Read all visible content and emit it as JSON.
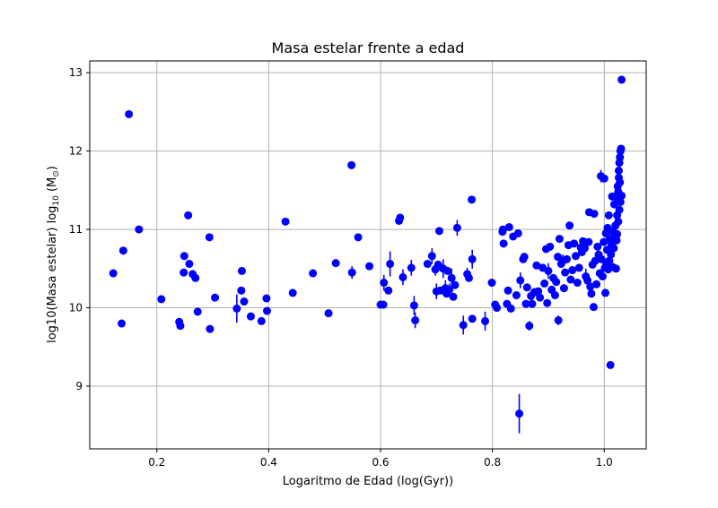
{
  "chart_data": {
    "type": "scatter",
    "title": "Masa estelar frente a edad",
    "xlabel": "Logaritmo de Edad (log(Gyr))",
    "ylabel_main": "log10(Masa estelar) log",
    "ylabel_sub": "10",
    "ylabel_unit_open": " (M",
    "ylabel_unit_sub": "⊙",
    "ylabel_unit_close": ")",
    "xlim": [
      0.08,
      1.075
    ],
    "ylim": [
      8.2,
      13.15
    ],
    "xticks": [
      0.2,
      0.4,
      0.6,
      0.8,
      1.0
    ],
    "xtick_labels": [
      "0.2",
      "0.4",
      "0.6",
      "0.8",
      "1.0"
    ],
    "yticks": [
      9,
      10,
      11,
      12,
      13
    ],
    "ytick_labels": [
      "9",
      "10",
      "11",
      "12",
      "13"
    ],
    "grid": true,
    "color": "#0000ff",
    "series": [
      {
        "points": [
          {
            "x": 0.122,
            "y": 10.44
          },
          {
            "x": 0.137,
            "y": 9.8
          },
          {
            "x": 0.14,
            "y": 10.73
          },
          {
            "x": 0.15,
            "y": 12.47
          },
          {
            "x": 0.168,
            "y": 11.0
          },
          {
            "x": 0.208,
            "y": 10.11
          },
          {
            "x": 0.24,
            "y": 9.82
          },
          {
            "x": 0.242,
            "y": 9.77
          },
          {
            "x": 0.248,
            "y": 10.45
          },
          {
            "x": 0.249,
            "y": 10.66
          },
          {
            "x": 0.256,
            "y": 11.18
          },
          {
            "x": 0.258,
            "y": 10.56
          },
          {
            "x": 0.264,
            "y": 10.43
          },
          {
            "x": 0.269,
            "y": 10.38
          },
          {
            "x": 0.273,
            "y": 9.95
          },
          {
            "x": 0.294,
            "y": 10.9
          },
          {
            "x": 0.295,
            "y": 9.73
          },
          {
            "x": 0.304,
            "y": 10.13
          },
          {
            "x": 0.343,
            "y": 9.99,
            "err": 0.18
          },
          {
            "x": 0.351,
            "y": 10.22
          },
          {
            "x": 0.352,
            "y": 10.47
          },
          {
            "x": 0.356,
            "y": 10.08
          },
          {
            "x": 0.368,
            "y": 9.89
          },
          {
            "x": 0.387,
            "y": 9.83
          },
          {
            "x": 0.396,
            "y": 10.12
          },
          {
            "x": 0.397,
            "y": 9.96
          },
          {
            "x": 0.43,
            "y": 11.1
          },
          {
            "x": 0.443,
            "y": 10.19
          },
          {
            "x": 0.479,
            "y": 10.44
          },
          {
            "x": 0.507,
            "y": 9.93
          },
          {
            "x": 0.52,
            "y": 10.57
          },
          {
            "x": 0.548,
            "y": 11.82
          },
          {
            "x": 0.549,
            "y": 10.45,
            "err": 0.08
          },
          {
            "x": 0.56,
            "y": 10.9
          },
          {
            "x": 0.58,
            "y": 10.53
          },
          {
            "x": 0.6,
            "y": 10.04
          },
          {
            "x": 0.605,
            "y": 10.04
          },
          {
            "x": 0.606,
            "y": 10.32,
            "err": 0.1
          },
          {
            "x": 0.614,
            "y": 10.22
          },
          {
            "x": 0.617,
            "y": 10.56,
            "err": 0.16
          },
          {
            "x": 0.633,
            "y": 11.11
          },
          {
            "x": 0.635,
            "y": 11.15
          },
          {
            "x": 0.64,
            "y": 10.39,
            "err": 0.1
          },
          {
            "x": 0.655,
            "y": 10.51,
            "err": 0.1
          },
          {
            "x": 0.66,
            "y": 10.03,
            "err": 0.12
          },
          {
            "x": 0.662,
            "y": 9.84,
            "err": 0.1
          },
          {
            "x": 0.684,
            "y": 10.56
          },
          {
            "x": 0.692,
            "y": 10.66,
            "err": 0.1
          },
          {
            "x": 0.698,
            "y": 10.49,
            "err": 0.08
          },
          {
            "x": 0.7,
            "y": 10.21,
            "err": 0.1
          },
          {
            "x": 0.703,
            "y": 10.55
          },
          {
            "x": 0.705,
            "y": 10.98
          },
          {
            "x": 0.707,
            "y": 10.22
          },
          {
            "x": 0.712,
            "y": 10.5,
            "err": 0.12
          },
          {
            "x": 0.716,
            "y": 10.25,
            "err": 0.1
          },
          {
            "x": 0.718,
            "y": 10.18
          },
          {
            "x": 0.72,
            "y": 10.47
          },
          {
            "x": 0.723,
            "y": 10.23,
            "err": 0.08
          },
          {
            "x": 0.727,
            "y": 10.38,
            "err": 0.12
          },
          {
            "x": 0.73,
            "y": 10.14
          },
          {
            "x": 0.733,
            "y": 10.29
          },
          {
            "x": 0.737,
            "y": 11.02,
            "err": 0.1
          },
          {
            "x": 0.748,
            "y": 9.78,
            "err": 0.12
          },
          {
            "x": 0.755,
            "y": 10.43,
            "err": 0.08
          },
          {
            "x": 0.758,
            "y": 10.38
          },
          {
            "x": 0.763,
            "y": 11.38
          },
          {
            "x": 0.764,
            "y": 10.62,
            "err": 0.12
          },
          {
            "x": 0.764,
            "y": 9.86
          },
          {
            "x": 0.787,
            "y": 9.83,
            "err": 0.12
          },
          {
            "x": 0.799,
            "y": 10.32
          },
          {
            "x": 0.805,
            "y": 10.04
          },
          {
            "x": 0.808,
            "y": 10.0
          },
          {
            "x": 0.818,
            "y": 10.97
          },
          {
            "x": 0.819,
            "y": 11.0
          },
          {
            "x": 0.82,
            "y": 10.82
          },
          {
            "x": 0.826,
            "y": 10.05
          },
          {
            "x": 0.828,
            "y": 10.22
          },
          {
            "x": 0.83,
            "y": 11.03
          },
          {
            "x": 0.833,
            "y": 9.99
          },
          {
            "x": 0.837,
            "y": 10.91
          },
          {
            "x": 0.843,
            "y": 10.16
          },
          {
            "x": 0.846,
            "y": 10.95
          },
          {
            "x": 0.848,
            "y": 8.65,
            "err": 0.25
          },
          {
            "x": 0.85,
            "y": 10.35,
            "err": 0.1
          },
          {
            "x": 0.855,
            "y": 10.62
          },
          {
            "x": 0.857,
            "y": 10.65
          },
          {
            "x": 0.86,
            "y": 10.05
          },
          {
            "x": 0.862,
            "y": 10.26
          },
          {
            "x": 0.866,
            "y": 9.77,
            "err": 0.06
          },
          {
            "x": 0.869,
            "y": 10.15
          },
          {
            "x": 0.871,
            "y": 10.05
          },
          {
            "x": 0.875,
            "y": 10.2
          },
          {
            "x": 0.879,
            "y": 10.54
          },
          {
            "x": 0.882,
            "y": 10.21
          },
          {
            "x": 0.885,
            "y": 10.13
          },
          {
            "x": 0.89,
            "y": 10.51
          },
          {
            "x": 0.893,
            "y": 10.31
          },
          {
            "x": 0.896,
            "y": 10.75
          },
          {
            "x": 0.898,
            "y": 10.06
          },
          {
            "x": 0.9,
            "y": 10.47,
            "err": 0.1
          },
          {
            "x": 0.903,
            "y": 10.78
          },
          {
            "x": 0.906,
            "y": 10.23
          },
          {
            "x": 0.909,
            "y": 10.38
          },
          {
            "x": 0.912,
            "y": 10.16
          },
          {
            "x": 0.914,
            "y": 10.33
          },
          {
            "x": 0.917,
            "y": 10.65
          },
          {
            "x": 0.918,
            "y": 9.84,
            "err": 0.06
          },
          {
            "x": 0.92,
            "y": 10.88
          },
          {
            "x": 0.923,
            "y": 10.56
          },
          {
            "x": 0.926,
            "y": 10.6,
            "err": 0.08
          },
          {
            "x": 0.928,
            "y": 10.25
          },
          {
            "x": 0.93,
            "y": 10.45
          },
          {
            "x": 0.933,
            "y": 10.62
          },
          {
            "x": 0.936,
            "y": 10.8
          },
          {
            "x": 0.938,
            "y": 11.05
          },
          {
            "x": 0.94,
            "y": 10.36
          },
          {
            "x": 0.943,
            "y": 10.48
          },
          {
            "x": 0.946,
            "y": 10.82
          },
          {
            "x": 0.949,
            "y": 10.66
          },
          {
            "x": 0.952,
            "y": 10.32
          },
          {
            "x": 0.955,
            "y": 10.51
          },
          {
            "x": 0.958,
            "y": 10.77
          },
          {
            "x": 0.96,
            "y": 10.71
          },
          {
            "x": 0.962,
            "y": 10.85
          },
          {
            "x": 0.965,
            "y": 10.76
          },
          {
            "x": 0.967,
            "y": 10.4,
            "err": 0.1
          },
          {
            "x": 0.97,
            "y": 10.35
          },
          {
            "x": 0.972,
            "y": 10.84
          },
          {
            "x": 0.973,
            "y": 11.22
          },
          {
            "x": 0.975,
            "y": 10.27
          },
          {
            "x": 0.977,
            "y": 10.18
          },
          {
            "x": 0.979,
            "y": 10.55
          },
          {
            "x": 0.981,
            "y": 10.01
          },
          {
            "x": 0.982,
            "y": 11.2
          },
          {
            "x": 0.984,
            "y": 10.6
          },
          {
            "x": 0.986,
            "y": 10.3
          },
          {
            "x": 0.988,
            "y": 10.78
          },
          {
            "x": 0.99,
            "y": 10.68
          },
          {
            "x": 0.992,
            "y": 10.44
          },
          {
            "x": 0.994,
            "y": 11.68,
            "err": 0.08
          },
          {
            "x": 0.995,
            "y": 10.62
          },
          {
            "x": 0.997,
            "y": 10.4
          },
          {
            "x": 0.999,
            "y": 10.84
          },
          {
            "x": 1.0,
            "y": 11.65
          },
          {
            "x": 1.001,
            "y": 10.51
          },
          {
            "x": 1.002,
            "y": 10.19
          },
          {
            "x": 1.003,
            "y": 10.95
          },
          {
            "x": 1.004,
            "y": 10.56
          },
          {
            "x": 1.005,
            "y": 10.74
          },
          {
            "x": 1.006,
            "y": 11.02
          },
          {
            "x": 1.007,
            "y": 10.49
          },
          {
            "x": 1.008,
            "y": 11.18
          },
          {
            "x": 1.009,
            "y": 10.6
          },
          {
            "x": 1.01,
            "y": 10.88
          },
          {
            "x": 1.011,
            "y": 9.27
          },
          {
            "x": 1.012,
            "y": 10.68
          },
          {
            "x": 1.013,
            "y": 10.81
          },
          {
            "x": 1.014,
            "y": 11.42
          },
          {
            "x": 1.015,
            "y": 10.52
          },
          {
            "x": 1.016,
            "y": 10.97
          },
          {
            "x": 1.017,
            "y": 10.76
          },
          {
            "x": 1.018,
            "y": 11.32
          },
          {
            "x": 1.019,
            "y": 10.91
          },
          {
            "x": 1.02,
            "y": 11.05
          },
          {
            "x": 1.021,
            "y": 10.5
          },
          {
            "x": 1.022,
            "y": 11.43
          },
          {
            "x": 1.022,
            "y": 10.86
          },
          {
            "x": 1.023,
            "y": 11.18
          },
          {
            "x": 1.023,
            "y": 10.94
          },
          {
            "x": 1.024,
            "y": 11.55
          },
          {
            "x": 1.024,
            "y": 11.38
          },
          {
            "x": 1.025,
            "y": 11.1
          },
          {
            "x": 1.025,
            "y": 11.48
          },
          {
            "x": 1.026,
            "y": 11.66
          },
          {
            "x": 1.026,
            "y": 11.75
          },
          {
            "x": 1.027,
            "y": 11.25
          },
          {
            "x": 1.027,
            "y": 11.85
          },
          {
            "x": 1.028,
            "y": 11.6
          },
          {
            "x": 1.028,
            "y": 11.92
          },
          {
            "x": 1.029,
            "y": 12.0
          },
          {
            "x": 1.029,
            "y": 11.35
          },
          {
            "x": 1.03,
            "y": 12.03
          },
          {
            "x": 1.031,
            "y": 11.43
          },
          {
            "x": 1.031,
            "y": 12.91
          }
        ]
      }
    ]
  }
}
